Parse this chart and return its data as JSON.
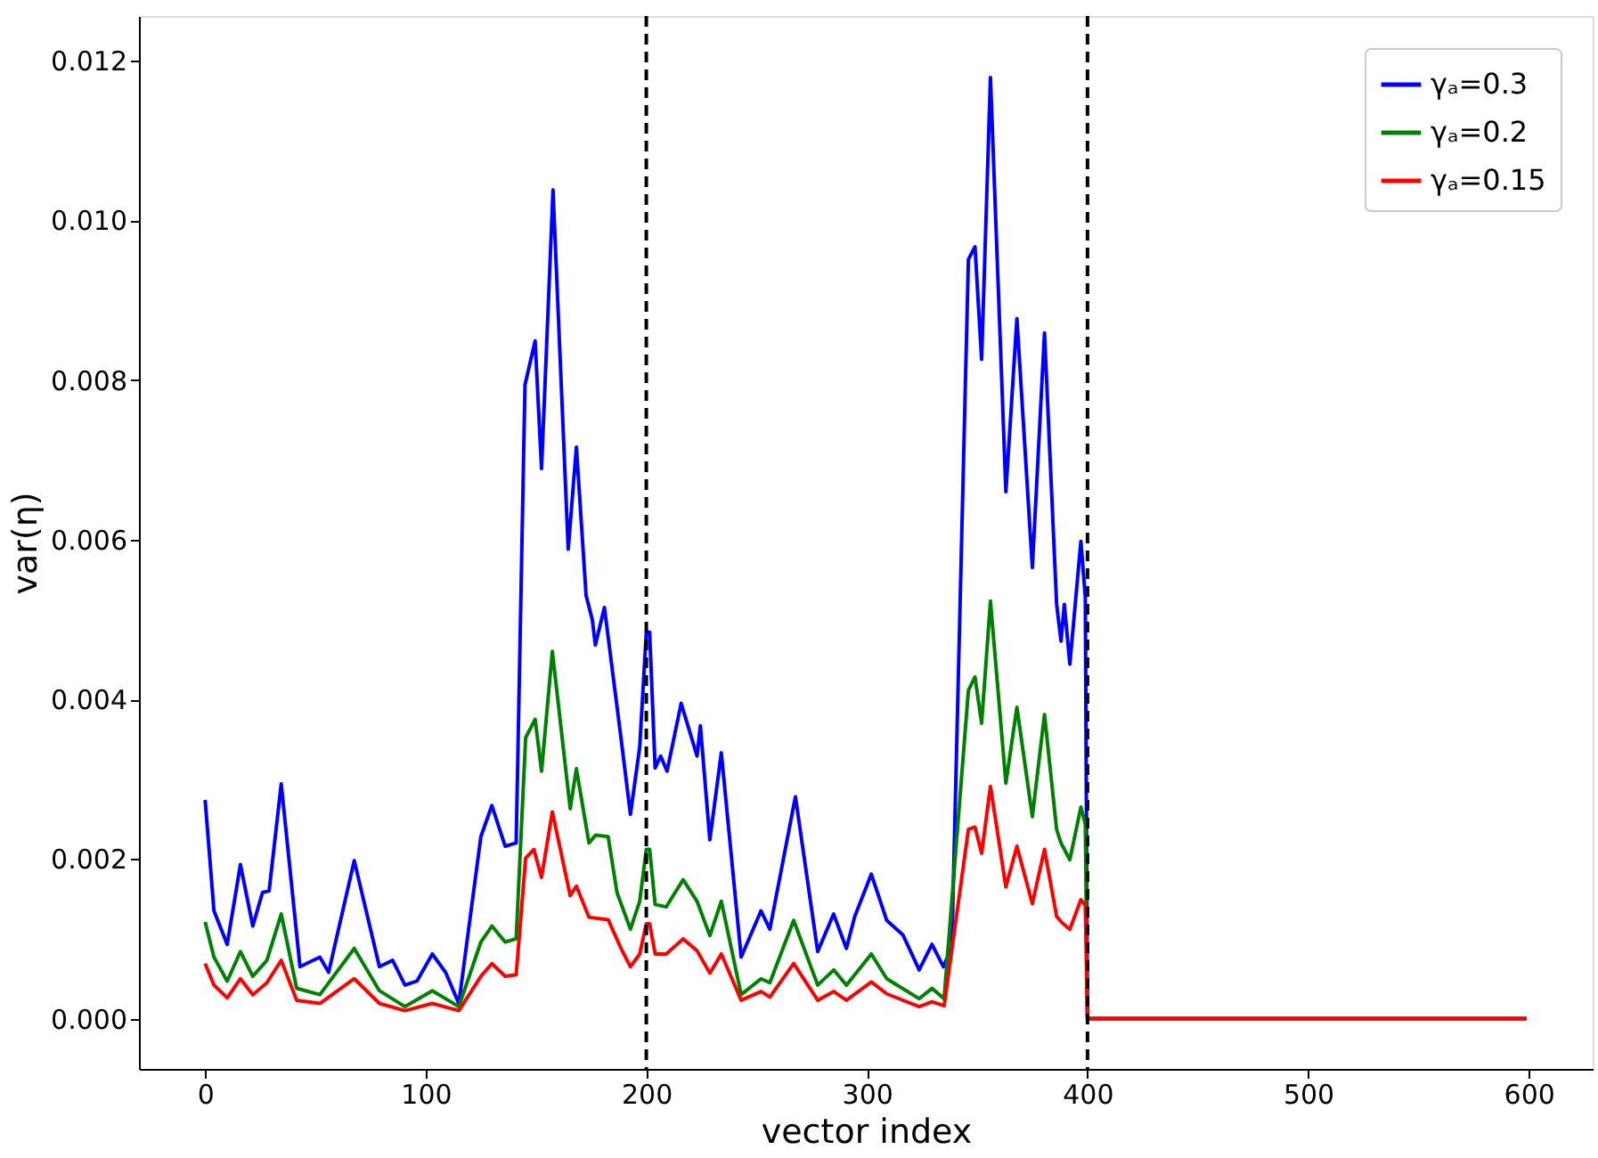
{
  "chart_data": {
    "type": "line",
    "xlabel": "vector index",
    "ylabel": "var(η)",
    "xlim": [
      -30,
      629
    ],
    "ylim": [
      -0.00063,
      0.01256
    ],
    "xticks": [
      0,
      100,
      200,
      300,
      400,
      500,
      600
    ],
    "yticks": [
      {
        "value": 0,
        "label": "0.000"
      },
      {
        "value": 0.002,
        "label": "0.002"
      },
      {
        "value": 0.004,
        "label": "0.004"
      },
      {
        "value": 0.006,
        "label": "0.006"
      },
      {
        "value": 0.008,
        "label": "0.008"
      },
      {
        "value": 0.01,
        "label": "0.010"
      },
      {
        "value": 0.012,
        "label": "0.012"
      }
    ],
    "grid": false,
    "legend": "top right",
    "line_style": "solid",
    "marker": "none",
    "ref_lines": [
      {
        "axis": "x",
        "value": 200,
        "color": "#000000",
        "line_style": "dashed"
      },
      {
        "axis": "x",
        "value": 400,
        "color": "#000000",
        "line_style": "dashed"
      }
    ],
    "series": [
      {
        "name": "γₐ=0.3",
        "color": "#0000ff",
        "x": [
          0,
          4,
          10,
          16,
          21.6,
          26,
          29,
          34.5,
          43,
          52,
          56,
          67.6,
          79,
          85,
          90.6,
          96,
          103,
          109,
          115,
          125,
          130,
          136,
          141,
          145,
          149.6,
          152.5,
          157.7,
          164.6,
          168.3,
          172.7,
          175.5,
          176.9,
          181,
          188.5,
          192.8,
          197,
          200,
          201.5,
          204,
          206.5,
          209.4,
          215.8,
          223,
          224.5,
          228.8,
          234,
          243,
          252,
          256,
          267.6,
          277.7,
          284.9,
          290.7,
          294.5,
          302,
          309,
          316.3,
          323.7,
          329.5,
          334.7,
          338.5,
          346,
          349,
          352,
          356,
          363,
          368,
          375,
          380.5,
          386,
          388,
          389.5,
          392,
          397,
          399,
          400,
          599
        ],
        "values": [
          0.00274,
          0.00135,
          0.00093,
          0.00193,
          0.00116,
          0.00158,
          0.0016,
          0.00294,
          0.00065,
          0.00077,
          0.00058,
          0.00198,
          0.00065,
          0.00073,
          0.00042,
          0.00047,
          0.00081,
          0.00058,
          0.00019,
          0.00228,
          0.00267,
          0.00216,
          0.0022,
          0.00794,
          0.00849,
          0.00689,
          0.01038,
          0.00588,
          0.00716,
          0.0053,
          0.005,
          0.00468,
          0.00515,
          0.00352,
          0.00256,
          0.0034,
          0.00484,
          0.00484,
          0.00314,
          0.00329,
          0.0031,
          0.00395,
          0.00329,
          0.00367,
          0.00224,
          0.00333,
          0.00077,
          0.00135,
          0.00112,
          0.00278,
          0.00084,
          0.00131,
          0.00088,
          0.00128,
          0.00181,
          0.00123,
          0.00105,
          0.00061,
          0.00093,
          0.00065,
          0.0009,
          0.00951,
          0.00967,
          0.00826,
          0.01179,
          0.0066,
          0.00877,
          0.00565,
          0.00859,
          0.00519,
          0.00473,
          0.00519,
          0.00444,
          0.00598,
          0.00528,
          0,
          0
        ]
      },
      {
        "name": "γₐ=0.2",
        "color": "#008000",
        "x": [
          0,
          4,
          10,
          16,
          21.6,
          28,
          34.5,
          41.5,
          52,
          67.6,
          79,
          90.6,
          103,
          115,
          125,
          130,
          136,
          141,
          145.3,
          149.6,
          152.5,
          157.4,
          165.5,
          168.3,
          174,
          177,
          182.7,
          186.7,
          192.8,
          197,
          200,
          201.5,
          204,
          209,
          216.7,
          223,
          228.8,
          234,
          243,
          252,
          256,
          266.8,
          277.7,
          285,
          290.7,
          302,
          309,
          323.7,
          329.5,
          335,
          346,
          349,
          352,
          356,
          363,
          368,
          375,
          380.5,
          386,
          388,
          392,
          397,
          399,
          400,
          599
        ],
        "values": [
          0.00121,
          0.00077,
          0.00047,
          0.00084,
          0.00053,
          0.00073,
          0.00131,
          0.00038,
          0.0003,
          0.00088,
          0.00035,
          0.00015,
          0.00035,
          0.00015,
          0.00096,
          0.00116,
          0.00096,
          0.001,
          0.00352,
          0.00375,
          0.0031,
          0.0046,
          0.00263,
          0.00313,
          0.0022,
          0.0023,
          0.00228,
          0.00158,
          0.00112,
          0.00147,
          0.00212,
          0.00212,
          0.00143,
          0.0014,
          0.00174,
          0.00147,
          0.00104,
          0.00147,
          0.0003,
          0.0005,
          0.00045,
          0.00123,
          0.00042,
          0.00061,
          0.00042,
          0.00081,
          0.0005,
          0.00025,
          0.00038,
          0.00025,
          0.00411,
          0.00428,
          0.0037,
          0.00523,
          0.00295,
          0.0039,
          0.00253,
          0.00381,
          0.00237,
          0.0022,
          0.00199,
          0.00265,
          0.00244,
          0,
          0
        ]
      },
      {
        "name": "γₐ=0.15",
        "color": "#ff0000",
        "x": [
          0,
          4,
          10,
          16,
          21.6,
          28,
          34.5,
          41.5,
          52,
          67.6,
          79,
          90.6,
          103,
          115,
          125,
          130,
          136,
          141,
          145.3,
          149,
          152.5,
          157.4,
          165.5,
          168.3,
          174,
          182.7,
          188.5,
          192.8,
          197,
          200,
          201.5,
          204,
          209,
          216.7,
          223,
          228.8,
          234,
          243,
          252,
          256,
          266.8,
          277.7,
          285,
          290.7,
          302,
          309,
          323.7,
          329.5,
          335,
          346,
          349,
          352,
          356,
          363,
          368,
          375,
          380.5,
          386,
          388.5,
          392,
          397,
          399,
          400,
          599
        ],
        "values": [
          0.00069,
          0.00042,
          0.00026,
          0.0005,
          0.0003,
          0.00045,
          0.00073,
          0.00023,
          0.00019,
          0.0005,
          0.00019,
          0.0001,
          0.00019,
          0.0001,
          0.00053,
          0.00069,
          0.00053,
          0.00055,
          0.00201,
          0.00212,
          0.00177,
          0.00259,
          0.00154,
          0.00166,
          0.00127,
          0.00124,
          0.00088,
          0.00065,
          0.00081,
          0.00119,
          0.00119,
          0.00081,
          0.00081,
          0.001,
          0.00085,
          0.00057,
          0.00081,
          0.00023,
          0.00034,
          0.00027,
          0.00069,
          0.00023,
          0.00034,
          0.00023,
          0.00046,
          0.00031,
          0.00015,
          0.00021,
          0.00016,
          0.00237,
          0.0024,
          0.00207,
          0.00291,
          0.00165,
          0.00216,
          0.00144,
          0.00212,
          0.00128,
          0.0012,
          0.00112,
          0.00149,
          0.00142,
          0,
          0
        ]
      }
    ]
  }
}
